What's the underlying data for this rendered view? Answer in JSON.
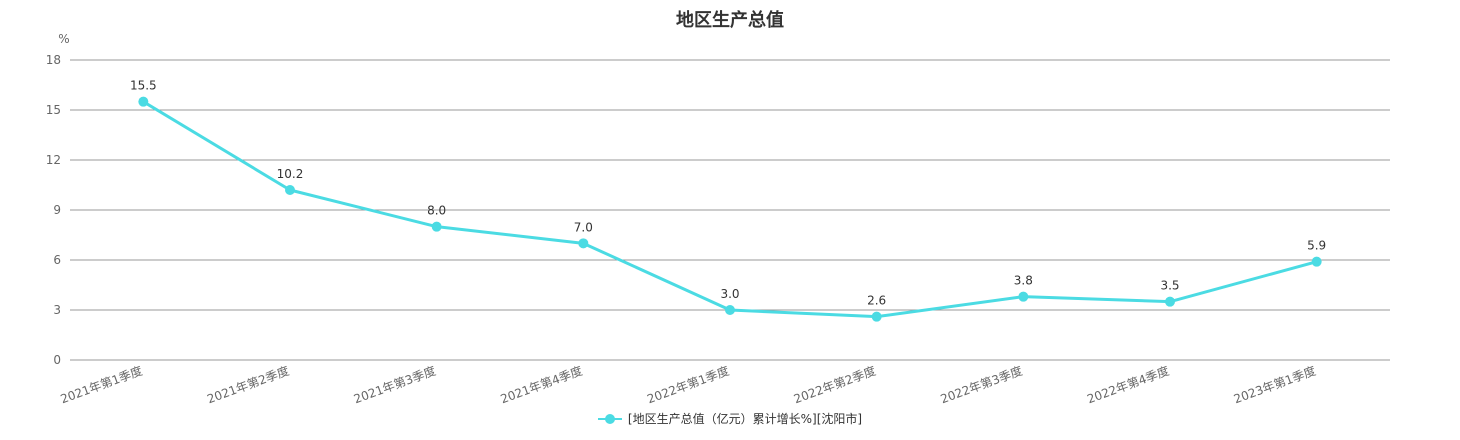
{
  "chart_data": {
    "type": "line",
    "title": "地区生产总值",
    "y_unit": "%",
    "categories": [
      "2021年第1季度",
      "2021年第2季度",
      "2021年第3季度",
      "2021年第4季度",
      "2022年第1季度",
      "2022年第2季度",
      "2022年第3季度",
      "2022年第4季度",
      "2023年第1季度"
    ],
    "series": [
      {
        "name": "[地区生产总值（亿元）累计增长%][沈阳市]",
        "values": [
          15.5,
          10.2,
          8.0,
          7.0,
          3.0,
          2.6,
          3.8,
          3.5,
          5.9
        ],
        "labels": [
          "15.5",
          "10.2",
          "8.0",
          "7.0",
          "3.0",
          "2.6",
          "3.8",
          "3.5",
          "5.9"
        ],
        "color": "#4bdbe3"
      }
    ],
    "ylim": [
      0,
      18
    ],
    "yticks": [
      0,
      3,
      6,
      9,
      12,
      15,
      18
    ],
    "grid": true,
    "legend_position": "bottom"
  },
  "colors": {
    "grid": "#999999",
    "axis_text": "#666666"
  }
}
